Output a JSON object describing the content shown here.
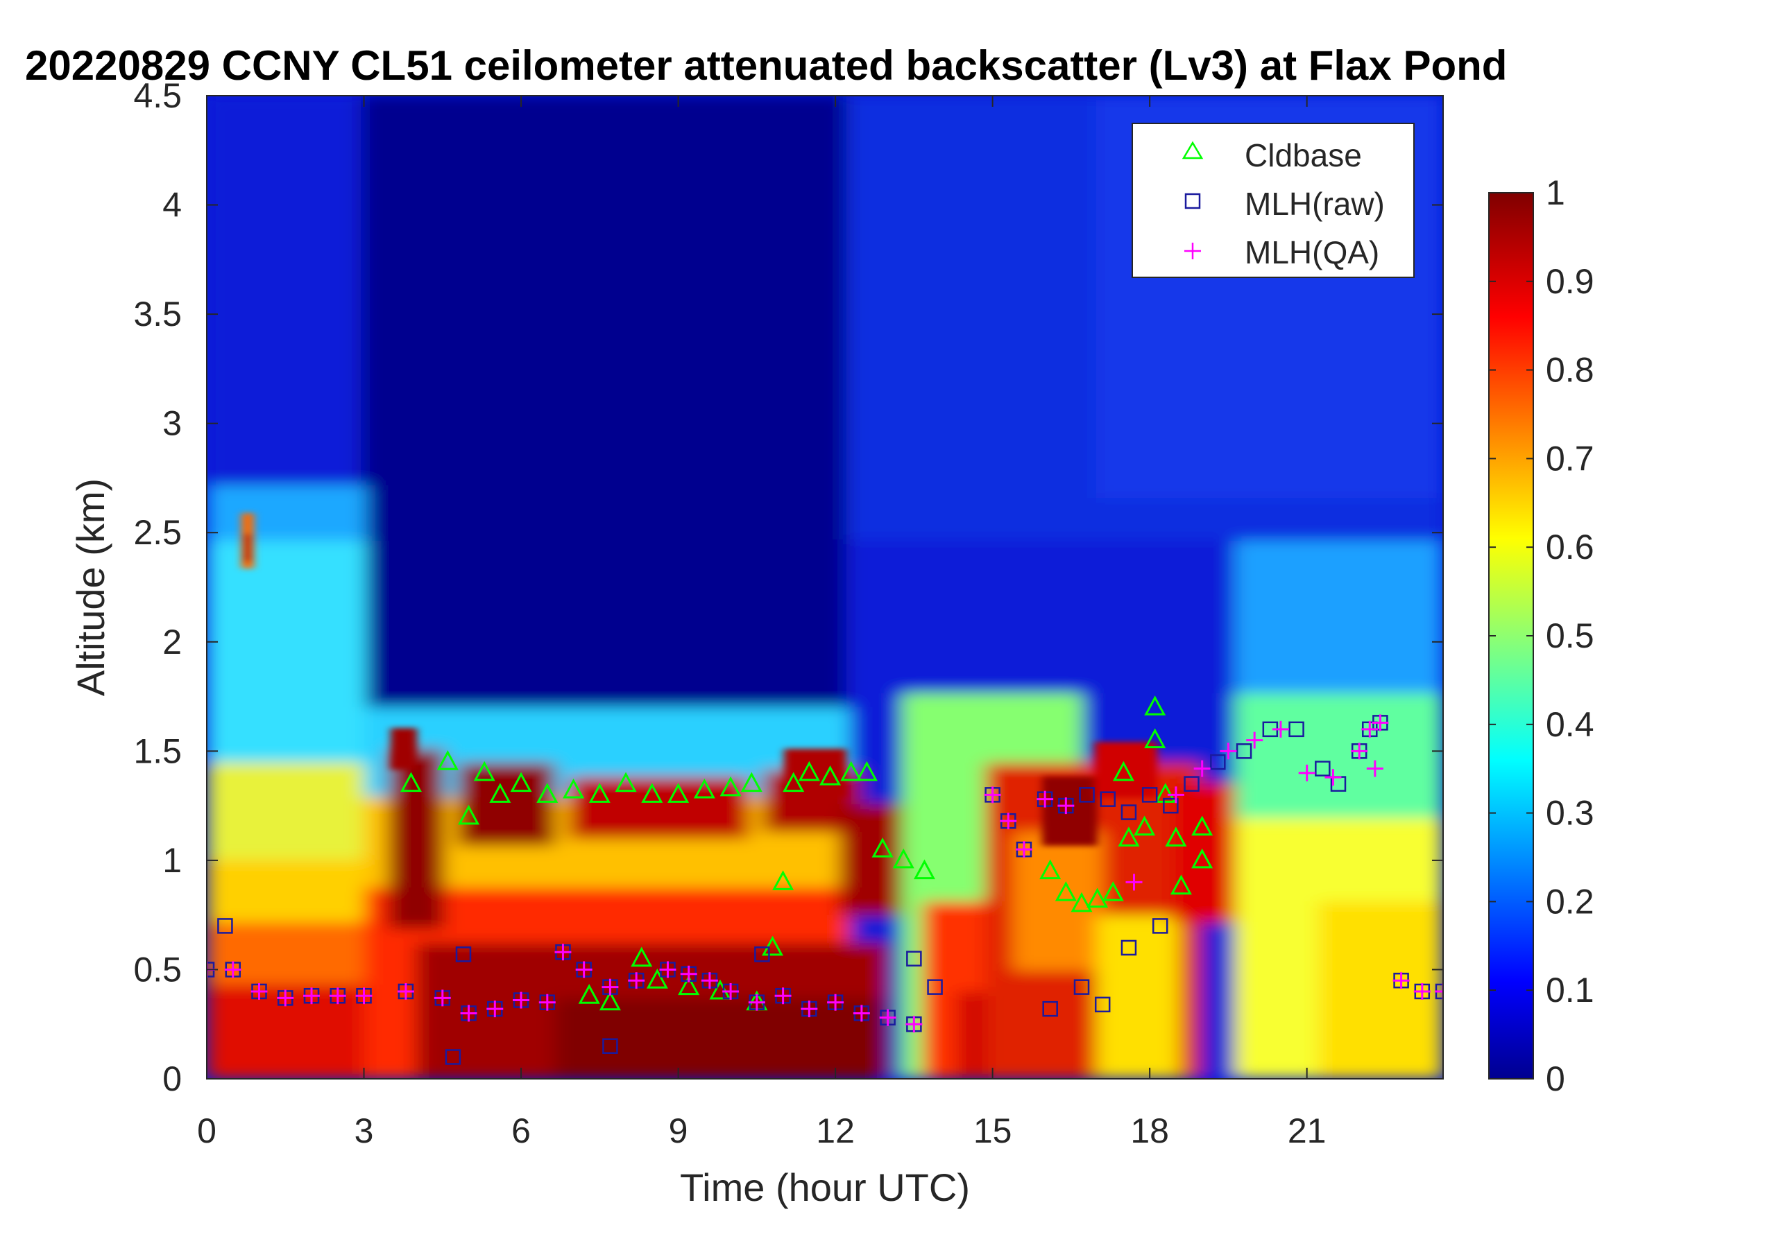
{
  "chart_data": {
    "type": "heatmap",
    "title": "20220829 CCNY CL51 ceilometer attenuated backscatter (Lv3) at Flax Pond",
    "xlabel": "Time (hour UTC)",
    "ylabel": "Altitude (km)",
    "xlim": [
      0,
      23.6
    ],
    "ylim": [
      0,
      4.5
    ],
    "x_ticks": [
      0,
      3,
      6,
      9,
      12,
      15,
      18,
      21
    ],
    "y_ticks": [
      0,
      0.5,
      1,
      1.5,
      2,
      2.5,
      3,
      3.5,
      4,
      4.5
    ],
    "y_tick_labels": [
      "0",
      "0.5",
      "1",
      "1.5",
      "2",
      "2.5",
      "3",
      "3.5",
      "4",
      "4.5"
    ],
    "colorbar": {
      "colormap": "jet",
      "range": [
        0,
        1
      ],
      "ticks": [
        0,
        0.1,
        0.2,
        0.3,
        0.4,
        0.5,
        0.6,
        0.7,
        0.8,
        0.9,
        1
      ],
      "tick_labels": [
        "0",
        "0.1",
        "0.2",
        "0.3",
        "0.4",
        "0.5",
        "0.6",
        "0.7",
        "0.8",
        "0.9",
        "1"
      ]
    },
    "legend_position": "top-right",
    "grid": false,
    "colors": {
      "cldbase": "#00ff00",
      "mlh_raw": "#1a1a9e",
      "mlh_qa": "#ff00ff",
      "background_low": "#00008f",
      "background_high": "#800000"
    },
    "series": [
      {
        "name": "Cldbase",
        "marker": "triangle",
        "x": [
          3.9,
          4.6,
          5.0,
          5.3,
          5.6,
          6.0,
          6.5,
          7.0,
          7.5,
          8.0,
          8.5,
          9.0,
          9.5,
          10.0,
          10.4,
          7.3,
          7.7,
          8.3,
          8.6,
          9.2,
          9.8,
          10.5,
          10.8,
          11.0,
          11.2,
          11.5,
          11.9,
          12.3,
          12.6,
          12.9,
          13.3,
          13.7,
          16.1,
          16.4,
          16.7,
          17.0,
          17.3,
          17.6,
          17.9,
          18.1,
          18.3,
          18.6,
          19.0,
          17.5,
          18.1,
          18.5,
          19.0
        ],
        "y": [
          1.35,
          1.45,
          1.2,
          1.4,
          1.3,
          1.35,
          1.3,
          1.32,
          1.3,
          1.35,
          1.3,
          1.3,
          1.32,
          1.33,
          1.35,
          0.38,
          0.35,
          0.55,
          0.45,
          0.42,
          0.4,
          0.35,
          0.6,
          0.9,
          1.35,
          1.4,
          1.38,
          1.4,
          1.4,
          1.05,
          1.0,
          0.95,
          0.95,
          0.85,
          0.8,
          0.82,
          0.85,
          1.1,
          1.15,
          1.7,
          1.3,
          0.88,
          1.0,
          1.4,
          1.55,
          1.1,
          1.15
        ]
      },
      {
        "name": "MLH(raw)",
        "marker": "square",
        "x": [
          0.0,
          0.5,
          1.0,
          1.5,
          2.0,
          2.5,
          3.0,
          3.8,
          4.5,
          5.0,
          5.5,
          6.0,
          6.5,
          6.8,
          7.2,
          7.7,
          8.2,
          8.8,
          9.2,
          9.6,
          10.0,
          10.5,
          11.0,
          11.5,
          12.0,
          12.5,
          13.0,
          13.5,
          13.9,
          15.0,
          15.3,
          15.6,
          16.0,
          16.4,
          16.8,
          17.2,
          17.6,
          18.0,
          18.4,
          18.8,
          19.3,
          19.8,
          20.3,
          20.8,
          21.3,
          21.6,
          22.0,
          22.2,
          22.4,
          22.8,
          23.2,
          23.6,
          0.35,
          4.7,
          4.9,
          7.7,
          10.6,
          13.5,
          16.1,
          16.7,
          17.1,
          17.6,
          18.2
        ],
        "y": [
          0.5,
          0.5,
          0.4,
          0.37,
          0.38,
          0.38,
          0.38,
          0.4,
          0.37,
          0.3,
          0.32,
          0.36,
          0.35,
          0.58,
          0.5,
          0.42,
          0.45,
          0.5,
          0.48,
          0.45,
          0.4,
          0.35,
          0.38,
          0.32,
          0.35,
          0.3,
          0.28,
          0.25,
          0.42,
          1.3,
          1.18,
          1.05,
          1.28,
          1.25,
          1.3,
          1.28,
          1.22,
          1.3,
          1.25,
          1.35,
          1.45,
          1.5,
          1.6,
          1.6,
          1.42,
          1.35,
          1.5,
          1.6,
          1.63,
          0.45,
          0.4,
          0.4,
          0.7,
          0.1,
          0.57,
          0.15,
          0.57,
          0.55,
          0.32,
          0.42,
          0.34,
          0.6,
          0.7
        ]
      },
      {
        "name": "MLH(QA)",
        "marker": "plus",
        "x": [
          0.0,
          0.5,
          1.0,
          1.5,
          2.0,
          2.5,
          3.0,
          3.8,
          4.5,
          5.0,
          5.5,
          6.0,
          6.5,
          6.8,
          7.2,
          7.7,
          8.2,
          8.8,
          9.2,
          9.6,
          10.0,
          10.5,
          11.0,
          11.5,
          12.0,
          12.5,
          13.0,
          13.5,
          15.0,
          15.3,
          15.6,
          16.0,
          16.4,
          18.5,
          19.0,
          19.5,
          20.0,
          20.5,
          21.0,
          21.5,
          22.0,
          22.2,
          22.4,
          22.8,
          23.2,
          23.6,
          17.7,
          22.3
        ],
        "y": [
          0.5,
          0.5,
          0.4,
          0.37,
          0.38,
          0.38,
          0.38,
          0.4,
          0.37,
          0.3,
          0.32,
          0.36,
          0.35,
          0.58,
          0.5,
          0.42,
          0.45,
          0.5,
          0.48,
          0.45,
          0.4,
          0.35,
          0.38,
          0.32,
          0.35,
          0.3,
          0.28,
          0.25,
          1.3,
          1.18,
          1.05,
          1.28,
          1.25,
          1.3,
          1.42,
          1.5,
          1.55,
          1.6,
          1.4,
          1.38,
          1.5,
          1.6,
          1.63,
          0.45,
          0.4,
          0.4,
          0.9,
          1.42
        ]
      }
    ]
  }
}
